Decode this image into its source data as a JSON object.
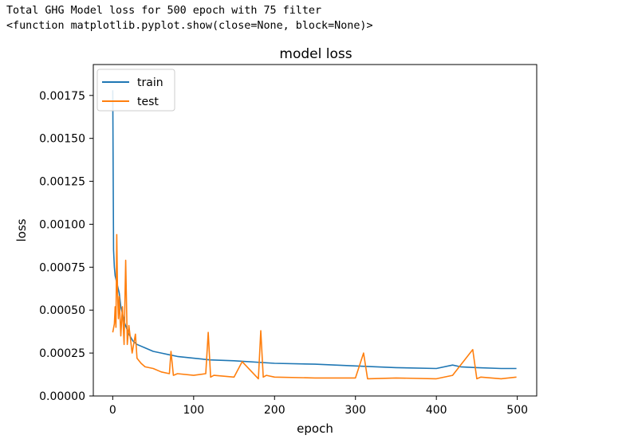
{
  "output": {
    "line1": "Total GHG Model loss for 500 epoch with 75 filter",
    "line2": "<function matplotlib.pyplot.show(close=None, block=None)>"
  },
  "chart_data": {
    "type": "line",
    "title": "model loss",
    "xlabel": "epoch",
    "ylabel": "loss",
    "xlim": [
      -24,
      524
    ],
    "ylim": [
      0,
      0.00193
    ],
    "xticks": [
      0,
      100,
      200,
      300,
      400,
      500
    ],
    "xtick_labels": [
      "0",
      "100",
      "200",
      "300",
      "400",
      "500"
    ],
    "yticks": [
      0,
      0.00025,
      0.0005,
      0.00075,
      0.001,
      0.00125,
      0.0015,
      0.00175
    ],
    "ytick_labels": [
      "0.00000",
      "0.00025",
      "0.00050",
      "0.00075",
      "0.00100",
      "0.00125",
      "0.00150",
      "0.00175"
    ],
    "legend_position": "upper-left",
    "grid": false,
    "series": [
      {
        "name": "train",
        "color": "#1f77b4",
        "x": [
          0,
          1,
          2,
          3,
          5,
          8,
          10,
          15,
          20,
          25,
          30,
          40,
          50,
          60,
          70,
          80,
          100,
          120,
          150,
          200,
          250,
          300,
          350,
          400,
          420,
          430,
          450,
          480,
          499
        ],
        "y": [
          0.00178,
          0.00085,
          0.00075,
          0.0007,
          0.00066,
          0.0006,
          0.00052,
          0.00042,
          0.00036,
          0.00032,
          0.0003,
          0.00028,
          0.00026,
          0.00025,
          0.00024,
          0.00023,
          0.00022,
          0.00021,
          0.000205,
          0.00019,
          0.000185,
          0.000175,
          0.000165,
          0.00016,
          0.00018,
          0.00017,
          0.000165,
          0.00016,
          0.00016
        ]
      },
      {
        "name": "test",
        "color": "#ff7f0e",
        "x": [
          0,
          2,
          3,
          4,
          5,
          6,
          7,
          8,
          10,
          12,
          14,
          16,
          18,
          20,
          24,
          28,
          30,
          35,
          40,
          50,
          60,
          70,
          72,
          75,
          80,
          100,
          115,
          118,
          121,
          125,
          150,
          160,
          180,
          183,
          186,
          190,
          200,
          250,
          300,
          310,
          315,
          350,
          400,
          420,
          445,
          450,
          455,
          480,
          499
        ],
        "y": [
          0.00037,
          0.00042,
          0.00052,
          0.0004,
          0.00094,
          0.0006,
          0.00045,
          0.00058,
          0.00035,
          0.00052,
          0.0003,
          0.00079,
          0.0003,
          0.00041,
          0.00025,
          0.00036,
          0.00022,
          0.00019,
          0.00017,
          0.00016,
          0.00014,
          0.00013,
          0.00026,
          0.00012,
          0.00013,
          0.00012,
          0.00013,
          0.00037,
          0.00011,
          0.00012,
          0.00011,
          0.0002,
          0.0001,
          0.00038,
          0.00011,
          0.00012,
          0.00011,
          0.000105,
          0.000105,
          0.00025,
          0.0001,
          0.000105,
          0.0001,
          0.00012,
          0.00027,
          0.0001,
          0.00011,
          0.0001,
          0.00011
        ]
      }
    ]
  }
}
